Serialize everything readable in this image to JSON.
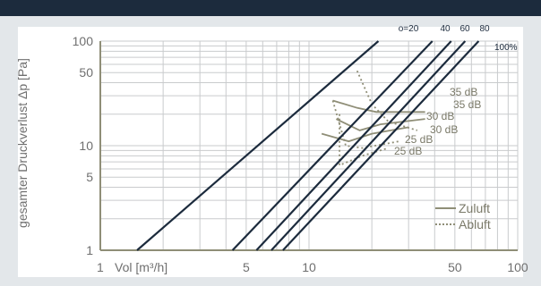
{
  "chart_data": {
    "type": "line",
    "xlabel": "Vol [m³/h]",
    "ylabel": "gesamter Druckverlust Δp [Pa]",
    "xscale": "log",
    "yscale": "log",
    "xlim": [
      1,
      100
    ],
    "ylim": [
      1,
      100
    ],
    "x_ticks": [
      "1",
      "5",
      "10",
      "50",
      "100"
    ],
    "y_ticks": [
      "100",
      "50",
      "10",
      "5",
      "1"
    ],
    "grid": true,
    "opening_lines": [
      {
        "label": "o=20",
        "x": [
          1.5,
          21.5
        ],
        "y": [
          1,
          100
        ]
      },
      {
        "label": "40",
        "x": [
          4.3,
          39
        ],
        "y": [
          1,
          100
        ]
      },
      {
        "label": "60",
        "x": [
          5.6,
          48
        ],
        "y": [
          1,
          100
        ]
      },
      {
        "label": "80",
        "x": [
          6.6,
          56
        ],
        "y": [
          1,
          100
        ]
      },
      {
        "label": "100%",
        "x": [
          7.5,
          65
        ],
        "y": [
          1,
          100
        ]
      }
    ],
    "db_labels": [
      "35 dB",
      "35 dB",
      "30 dB",
      "30 dB",
      "25 dB",
      "25 dB"
    ],
    "series": [
      {
        "name": "Zuluft",
        "style": "solid",
        "curves": [
          {
            "x": [
              13,
              17,
              21,
              36
            ],
            "y": [
              27,
              23,
              21,
              21
            ]
          },
          {
            "x": [
              13.5,
              17.5,
              22,
              36
            ],
            "y": [
              18,
              14,
              16,
              18
            ]
          },
          {
            "x": [
              11.5,
              15.5,
              20,
              30
            ],
            "y": [
              13,
              11,
              13,
              15
            ]
          }
        ]
      },
      {
        "name": "Abluft",
        "style": "dotted",
        "curves": [
          {
            "x": [
              17,
              20,
              24,
              33
            ],
            "y": [
              52,
              25,
              17,
              14
            ]
          },
          {
            "x": [
              13,
              15,
              18,
              27
            ],
            "y": [
              27,
              10,
              9.5,
              11
            ]
          },
          {
            "x": [
              14,
              14,
              18,
              24
            ],
            "y": [
              20,
              6.5,
              8,
              9.5
            ]
          }
        ]
      }
    ],
    "legend": {
      "position": "bottom-right",
      "items": [
        "Zuluft",
        "Abluft"
      ]
    },
    "colors": {
      "background": "#e3e7ea",
      "plot": "#ffffff",
      "header": "#1c2b3d",
      "line": "#1c2b3d",
      "curve": "#8f8e77",
      "grid": "#c9cbcd",
      "axis": "#8f8e77"
    }
  }
}
